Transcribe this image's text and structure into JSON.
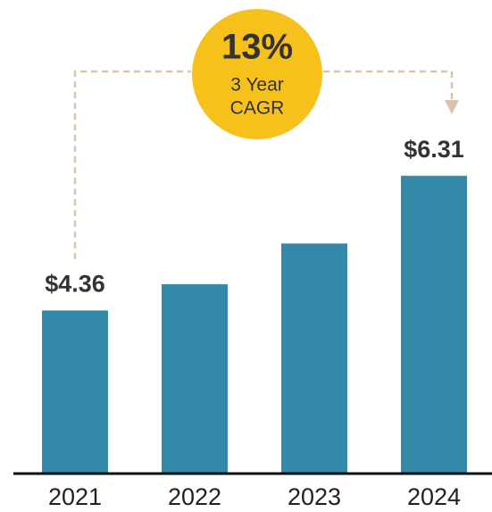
{
  "chart_data": {
    "type": "bar",
    "categories": [
      "2021",
      "2022",
      "2023",
      "2024"
    ],
    "values": [
      4.36,
      4.74,
      5.33,
      6.31
    ],
    "value_labels": [
      "$4.36",
      null,
      null,
      "$6.31"
    ],
    "color": "#3589a8",
    "ylim": [
      2,
      8
    ],
    "annotation": {
      "headline": "13%",
      "lines": [
        "3 Year",
        "CAGR"
      ],
      "color": "#f7c11b"
    }
  }
}
